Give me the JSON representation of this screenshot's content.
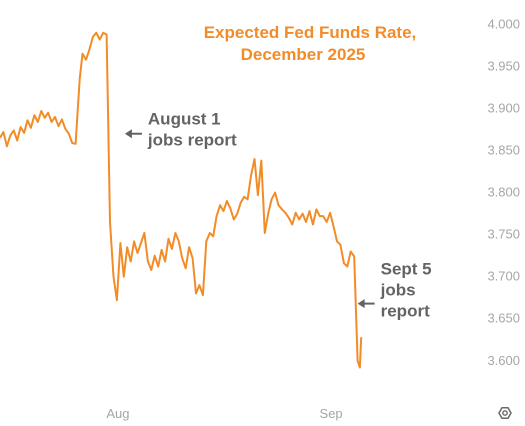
{
  "chart_data": {
    "type": "line",
    "title_lines": [
      "Expected Fed Funds Rate,",
      "December 2025"
    ],
    "xlabel": "",
    "ylabel": "",
    "xlim": [
      "2025-07-15",
      "2025-09-10"
    ],
    "ylim": [
      3.57,
      4.01
    ],
    "y_ticks": [
      "3.600",
      "3.650",
      "3.700",
      "3.750",
      "3.800",
      "3.850",
      "3.900",
      "3.950",
      "4.000"
    ],
    "x_ticks": [
      {
        "label": "Aug",
        "date": "2025-08-01"
      },
      {
        "label": "Sep",
        "date": "2025-09-01"
      }
    ],
    "grid": false,
    "legend": "none",
    "colors": {
      "line": "#f28c28",
      "title": "#f28c28",
      "annotation": "#636363",
      "tick_text": "#a6a6a6"
    },
    "series": [
      {
        "values": [
          [
            "2025-07-15",
            3.865
          ],
          [
            "2025-07-15T12",
            3.872
          ],
          [
            "2025-07-16",
            3.855
          ],
          [
            "2025-07-16T12",
            3.868
          ],
          [
            "2025-07-17",
            3.874
          ],
          [
            "2025-07-17T12",
            3.862
          ],
          [
            "2025-07-18",
            3.878
          ],
          [
            "2025-07-18T12",
            3.871
          ],
          [
            "2025-07-19",
            3.886
          ],
          [
            "2025-07-19T12",
            3.877
          ],
          [
            "2025-07-20",
            3.892
          ],
          [
            "2025-07-20T12",
            3.884
          ],
          [
            "2025-07-21",
            3.897
          ],
          [
            "2025-07-21T12",
            3.889
          ],
          [
            "2025-07-22",
            3.895
          ],
          [
            "2025-07-22T12",
            3.884
          ],
          [
            "2025-07-23",
            3.89
          ],
          [
            "2025-07-23T12",
            3.879
          ],
          [
            "2025-07-24",
            3.887
          ],
          [
            "2025-07-24T12",
            3.876
          ],
          [
            "2025-07-25",
            3.87
          ],
          [
            "2025-07-25T12",
            3.859
          ],
          [
            "2025-07-26",
            3.858
          ],
          [
            "2025-07-26T14",
            3.935
          ],
          [
            "2025-07-27",
            3.965
          ],
          [
            "2025-07-27T12",
            3.958
          ],
          [
            "2025-07-28",
            3.97
          ],
          [
            "2025-07-28T12",
            3.985
          ],
          [
            "2025-07-29",
            3.99
          ],
          [
            "2025-07-29T12",
            3.982
          ],
          [
            "2025-07-30",
            3.99
          ],
          [
            "2025-07-30T12",
            3.988
          ],
          [
            "2025-07-31",
            3.765
          ],
          [
            "2025-07-31T12",
            3.7
          ],
          [
            "2025-08-01",
            3.672
          ],
          [
            "2025-08-01T12",
            3.74
          ],
          [
            "2025-08-02",
            3.7
          ],
          [
            "2025-08-02T12",
            3.735
          ],
          [
            "2025-08-03",
            3.718
          ],
          [
            "2025-08-03T12",
            3.742
          ],
          [
            "2025-08-04",
            3.728
          ],
          [
            "2025-08-05",
            3.752
          ],
          [
            "2025-08-05T12",
            3.718
          ],
          [
            "2025-08-06",
            3.708
          ],
          [
            "2025-08-06T12",
            3.725
          ],
          [
            "2025-08-07",
            3.712
          ],
          [
            "2025-08-07T12",
            3.732
          ],
          [
            "2025-08-08",
            3.718
          ],
          [
            "2025-08-08T12",
            3.745
          ],
          [
            "2025-08-09",
            3.733
          ],
          [
            "2025-08-09T12",
            3.752
          ],
          [
            "2025-08-10",
            3.742
          ],
          [
            "2025-08-10T12",
            3.722
          ],
          [
            "2025-08-11",
            3.71
          ],
          [
            "2025-08-11T12",
            3.735
          ],
          [
            "2025-08-12",
            3.722
          ],
          [
            "2025-08-12T12",
            3.68
          ],
          [
            "2025-08-13",
            3.69
          ],
          [
            "2025-08-13T12",
            3.678
          ],
          [
            "2025-08-14",
            3.742
          ],
          [
            "2025-08-14T12",
            3.752
          ],
          [
            "2025-08-15",
            3.748
          ],
          [
            "2025-08-15T12",
            3.772
          ],
          [
            "2025-08-16",
            3.785
          ],
          [
            "2025-08-16T12",
            3.778
          ],
          [
            "2025-08-17",
            3.79
          ],
          [
            "2025-08-17T12",
            3.781
          ],
          [
            "2025-08-18",
            3.768
          ],
          [
            "2025-08-18T12",
            3.775
          ],
          [
            "2025-08-19",
            3.788
          ],
          [
            "2025-08-19T12",
            3.795
          ],
          [
            "2025-08-20",
            3.792
          ],
          [
            "2025-08-20T12",
            3.82
          ],
          [
            "2025-08-21",
            3.84
          ],
          [
            "2025-08-21T12",
            3.797
          ],
          [
            "2025-08-22",
            3.838
          ],
          [
            "2025-08-22T12",
            3.752
          ],
          [
            "2025-08-23",
            3.775
          ],
          [
            "2025-08-23T12",
            3.792
          ],
          [
            "2025-08-24",
            3.8
          ],
          [
            "2025-08-24T12",
            3.785
          ],
          [
            "2025-08-25",
            3.78
          ],
          [
            "2025-08-25T12",
            3.776
          ],
          [
            "2025-08-26",
            3.77
          ],
          [
            "2025-08-26T12",
            3.762
          ],
          [
            "2025-08-27",
            3.776
          ],
          [
            "2025-08-27T12",
            3.768
          ],
          [
            "2025-08-28",
            3.775
          ],
          [
            "2025-08-28T12",
            3.765
          ],
          [
            "2025-08-29",
            3.778
          ],
          [
            "2025-08-29T12",
            3.762
          ],
          [
            "2025-08-30",
            3.78
          ],
          [
            "2025-08-30T12",
            3.772
          ],
          [
            "2025-08-31",
            3.772
          ],
          [
            "2025-08-31T12",
            3.765
          ],
          [
            "2025-09-01",
            3.776
          ],
          [
            "2025-09-01T12",
            3.76
          ],
          [
            "2025-09-02",
            3.742
          ],
          [
            "2025-09-02T12",
            3.738
          ],
          [
            "2025-09-03",
            3.716
          ],
          [
            "2025-09-03T12",
            3.712
          ],
          [
            "2025-09-04",
            3.73
          ],
          [
            "2025-09-04T12",
            3.724
          ],
          [
            "2025-09-05",
            3.6
          ],
          [
            "2025-09-05T08",
            3.592
          ],
          [
            "2025-09-05T12",
            3.626
          ],
          [
            "2025-09-05T14",
            3.628
          ]
        ]
      }
    ],
    "annotations": [
      {
        "lines": [
          "August 1",
          "jobs report"
        ],
        "target": [
          "2025-08-01",
          3.87
        ]
      },
      {
        "lines": [
          "Sept 5",
          "jobs",
          "report"
        ],
        "target": [
          "2025-09-05",
          3.668
        ]
      }
    ]
  },
  "ui": {
    "settings_icon": "gear-icon"
  }
}
